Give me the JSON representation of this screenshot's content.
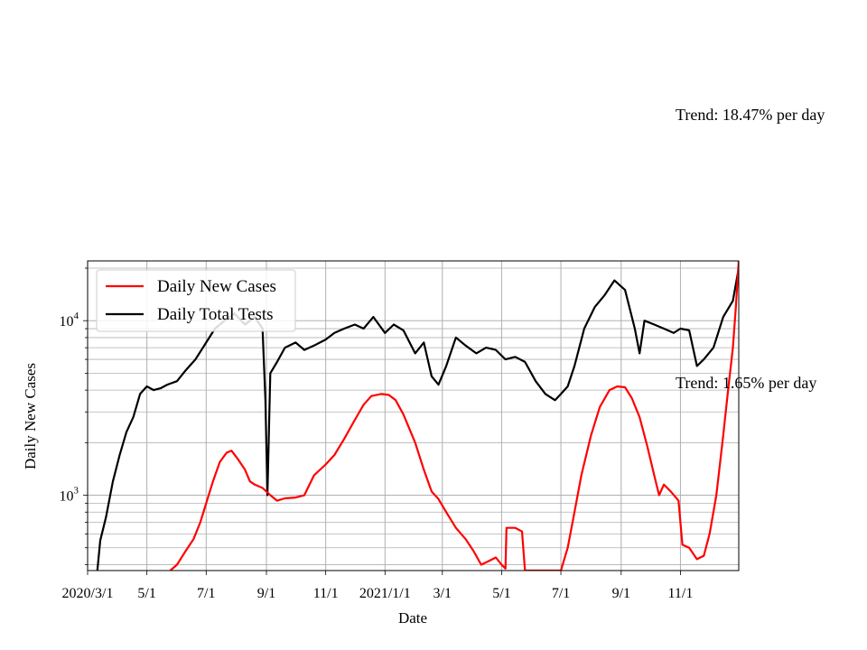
{
  "chart_data": {
    "type": "line",
    "title": "",
    "xlabel": "Date",
    "ylabel": "Daily New Cases",
    "yscale": "log",
    "ylim": [
      370,
      22000
    ],
    "xlim": [
      "2020-03-01",
      "2021-12-31"
    ],
    "grid": true,
    "legend_position": "upper-left",
    "x_ticks": [
      {
        "date": "2020-03-01",
        "label": "2020/3/1"
      },
      {
        "date": "2020-05-01",
        "label": "5/1"
      },
      {
        "date": "2020-07-01",
        "label": "7/1"
      },
      {
        "date": "2020-09-01",
        "label": "9/1"
      },
      {
        "date": "2020-11-01",
        "label": "11/1"
      },
      {
        "date": "2021-01-01",
        "label": "2021/1/1"
      },
      {
        "date": "2021-03-01",
        "label": "3/1"
      },
      {
        "date": "2021-05-01",
        "label": "5/1"
      },
      {
        "date": "2021-07-01",
        "label": "7/1"
      },
      {
        "date": "2021-09-01",
        "label": "9/1"
      },
      {
        "date": "2021-11-01",
        "label": "11/1"
      }
    ],
    "y_ticks": [
      {
        "value": 1000,
        "base": "10",
        "exp": "3"
      },
      {
        "value": 10000,
        "base": "10",
        "exp": "4"
      }
    ],
    "series": [
      {
        "name": "Daily New Cases",
        "color": "#ff0000",
        "points": [
          [
            "2020-05-25",
            370
          ],
          [
            "2020-06-01",
            400
          ],
          [
            "2020-06-10",
            480
          ],
          [
            "2020-06-18",
            560
          ],
          [
            "2020-06-25",
            700
          ],
          [
            "2020-07-01",
            900
          ],
          [
            "2020-07-08",
            1200
          ],
          [
            "2020-07-15",
            1550
          ],
          [
            "2020-07-22",
            1750
          ],
          [
            "2020-07-27",
            1800
          ],
          [
            "2020-08-03",
            1600
          ],
          [
            "2020-08-10",
            1400
          ],
          [
            "2020-08-15",
            1200
          ],
          [
            "2020-08-20",
            1150
          ],
          [
            "2020-08-28",
            1100
          ],
          [
            "2020-09-05",
            1000
          ],
          [
            "2020-09-12",
            930
          ],
          [
            "2020-09-20",
            960
          ],
          [
            "2020-10-01",
            970
          ],
          [
            "2020-10-10",
            1000
          ],
          [
            "2020-10-20",
            1300
          ],
          [
            "2020-11-01",
            1500
          ],
          [
            "2020-11-10",
            1700
          ],
          [
            "2020-11-20",
            2100
          ],
          [
            "2020-12-01",
            2700
          ],
          [
            "2020-12-10",
            3300
          ],
          [
            "2020-12-18",
            3700
          ],
          [
            "2020-12-28",
            3800
          ],
          [
            "2021-01-05",
            3750
          ],
          [
            "2021-01-12",
            3500
          ],
          [
            "2021-01-20",
            2900
          ],
          [
            "2021-02-01",
            2000
          ],
          [
            "2021-02-10",
            1400
          ],
          [
            "2021-02-18",
            1050
          ],
          [
            "2021-02-25",
            950
          ],
          [
            "2021-03-05",
            800
          ],
          [
            "2021-03-15",
            650
          ],
          [
            "2021-03-25",
            560
          ],
          [
            "2021-04-02",
            480
          ],
          [
            "2021-04-10",
            400
          ],
          [
            "2021-04-18",
            420
          ],
          [
            "2021-04-25",
            440
          ],
          [
            "2021-05-01",
            400
          ],
          [
            "2021-05-05",
            380
          ],
          [
            "2021-05-06",
            650
          ],
          [
            "2021-05-15",
            650
          ],
          [
            "2021-05-22",
            620
          ],
          [
            "2021-05-25",
            370
          ],
          [
            "2021-07-01",
            370
          ],
          [
            "2021-07-08",
            500
          ],
          [
            "2021-07-15",
            800
          ],
          [
            "2021-07-22",
            1300
          ],
          [
            "2021-08-01",
            2200
          ],
          [
            "2021-08-10",
            3200
          ],
          [
            "2021-08-20",
            4000
          ],
          [
            "2021-08-28",
            4200
          ],
          [
            "2021-09-05",
            4150
          ],
          [
            "2021-09-12",
            3600
          ],
          [
            "2021-09-20",
            2800
          ],
          [
            "2021-09-28",
            1900
          ],
          [
            "2021-10-05",
            1300
          ],
          [
            "2021-10-10",
            1000
          ],
          [
            "2021-10-15",
            1150
          ],
          [
            "2021-10-22",
            1050
          ],
          [
            "2021-10-30",
            930
          ],
          [
            "2021-11-03",
            520
          ],
          [
            "2021-11-10",
            500
          ],
          [
            "2021-11-18",
            430
          ],
          [
            "2021-11-25",
            450
          ],
          [
            "2021-12-01",
            600
          ],
          [
            "2021-12-08",
            1000
          ],
          [
            "2021-12-15",
            2200
          ],
          [
            "2021-12-20",
            4000
          ],
          [
            "2021-12-25",
            7000
          ],
          [
            "2021-12-28",
            12000
          ],
          [
            "2021-12-31",
            22000
          ]
        ]
      },
      {
        "name": "Daily Total Tests",
        "color": "#000000",
        "points": [
          [
            "2020-03-11",
            370
          ],
          [
            "2020-03-14",
            550
          ],
          [
            "2020-03-20",
            750
          ],
          [
            "2020-03-27",
            1200
          ],
          [
            "2020-04-03",
            1700
          ],
          [
            "2020-04-10",
            2300
          ],
          [
            "2020-04-17",
            2800
          ],
          [
            "2020-04-24",
            3800
          ],
          [
            "2020-05-01",
            4200
          ],
          [
            "2020-05-08",
            4000
          ],
          [
            "2020-05-15",
            4100
          ],
          [
            "2020-05-22",
            4300
          ],
          [
            "2020-06-01",
            4500
          ],
          [
            "2020-06-10",
            5200
          ],
          [
            "2020-06-20",
            6000
          ],
          [
            "2020-07-01",
            7500
          ],
          [
            "2020-07-10",
            9000
          ],
          [
            "2020-07-20",
            10000
          ],
          [
            "2020-07-30",
            11000
          ],
          [
            "2020-08-10",
            9500
          ],
          [
            "2020-08-20",
            10500
          ],
          [
            "2020-08-28",
            9000
          ],
          [
            "2020-08-31",
            3500
          ],
          [
            "2020-09-02",
            1000
          ],
          [
            "2020-09-05",
            5000
          ],
          [
            "2020-09-12",
            5800
          ],
          [
            "2020-09-20",
            7000
          ],
          [
            "2020-10-01",
            7500
          ],
          [
            "2020-10-10",
            6800
          ],
          [
            "2020-10-20",
            7200
          ],
          [
            "2020-11-01",
            7800
          ],
          [
            "2020-11-10",
            8500
          ],
          [
            "2020-11-20",
            9000
          ],
          [
            "2020-12-01",
            9500
          ],
          [
            "2020-12-10",
            9000
          ],
          [
            "2020-12-20",
            10500
          ],
          [
            "2021-01-01",
            8500
          ],
          [
            "2021-01-10",
            9500
          ],
          [
            "2021-01-20",
            8800
          ],
          [
            "2021-02-01",
            6500
          ],
          [
            "2021-02-10",
            7500
          ],
          [
            "2021-02-18",
            4800
          ],
          [
            "2021-02-25",
            4300
          ],
          [
            "2021-03-05",
            5500
          ],
          [
            "2021-03-15",
            8000
          ],
          [
            "2021-03-25",
            7200
          ],
          [
            "2021-04-05",
            6500
          ],
          [
            "2021-04-15",
            7000
          ],
          [
            "2021-04-25",
            6800
          ],
          [
            "2021-05-05",
            6000
          ],
          [
            "2021-05-15",
            6200
          ],
          [
            "2021-05-25",
            5800
          ],
          [
            "2021-06-05",
            4500
          ],
          [
            "2021-06-15",
            3800
          ],
          [
            "2021-06-25",
            3500
          ],
          [
            "2021-07-01",
            3800
          ],
          [
            "2021-07-08",
            4200
          ],
          [
            "2021-07-15",
            5500
          ],
          [
            "2021-07-25",
            9000
          ],
          [
            "2021-08-05",
            12000
          ],
          [
            "2021-08-15",
            14000
          ],
          [
            "2021-08-25",
            17000
          ],
          [
            "2021-09-05",
            15000
          ],
          [
            "2021-09-15",
            9000
          ],
          [
            "2021-09-20",
            6500
          ],
          [
            "2021-09-25",
            10000
          ],
          [
            "2021-10-05",
            9500
          ],
          [
            "2021-10-15",
            9000
          ],
          [
            "2021-10-25",
            8500
          ],
          [
            "2021-11-01",
            9000
          ],
          [
            "2021-11-10",
            8800
          ],
          [
            "2021-11-18",
            5500
          ],
          [
            "2021-11-25",
            6000
          ],
          [
            "2021-12-05",
            7000
          ],
          [
            "2021-12-15",
            10500
          ],
          [
            "2021-12-25",
            13000
          ],
          [
            "2021-12-31",
            20000
          ]
        ]
      }
    ],
    "annotations": [
      {
        "text": "Trend: 18.47% per day"
      },
      {
        "text": "Trend: 1.65% per day"
      }
    ]
  }
}
